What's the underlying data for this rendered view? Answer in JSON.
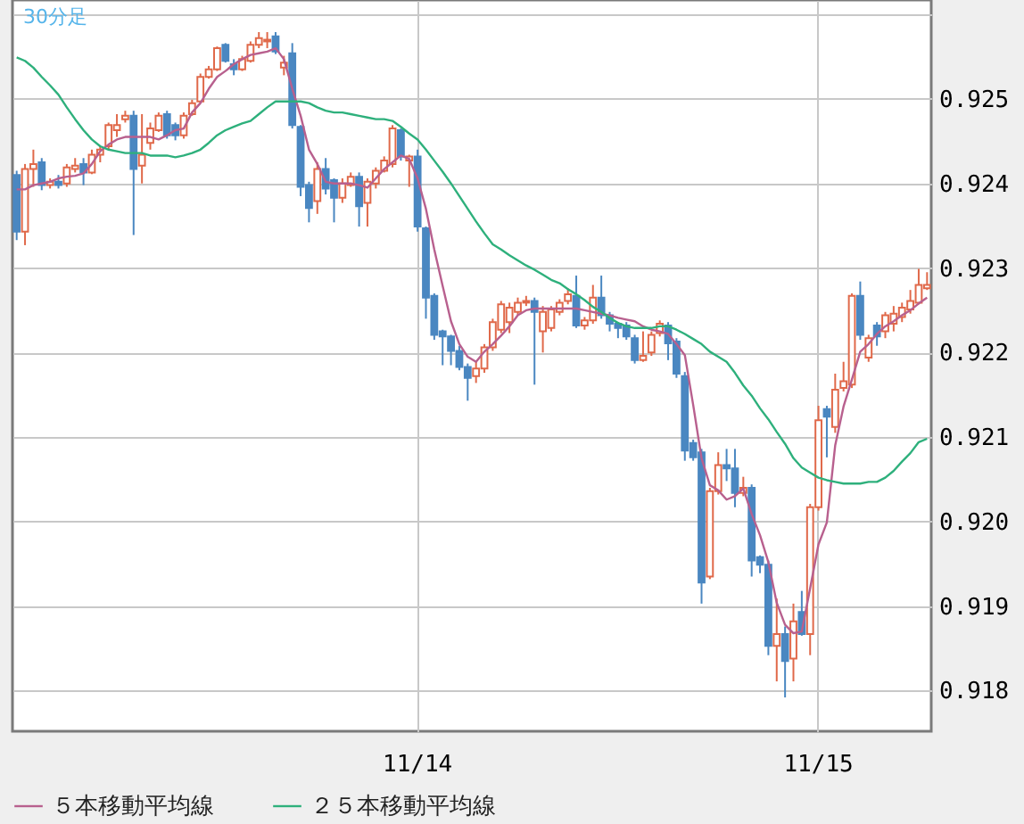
{
  "chart_data": {
    "type": "candlestick",
    "categories": [
      null,
      null,
      null,
      null,
      null,
      null,
      null,
      null,
      null,
      null,
      null,
      null,
      null,
      null,
      null,
      null,
      null,
      null,
      null,
      null,
      null,
      null,
      null,
      null,
      null,
      null,
      null,
      null,
      null,
      null,
      null,
      null,
      null,
      null,
      null,
      null,
      null,
      null,
      null,
      null,
      null,
      null,
      null,
      null,
      null,
      null,
      null,
      null,
      "11/14",
      null,
      null,
      null,
      null,
      null,
      null,
      null,
      null,
      null,
      null,
      null,
      null,
      null,
      null,
      null,
      null,
      null,
      null,
      null,
      null,
      null,
      null,
      null,
      null,
      null,
      null,
      null,
      null,
      null,
      null,
      null,
      null,
      null,
      null,
      null,
      null,
      null,
      null,
      null,
      null,
      null,
      null,
      null,
      null,
      null,
      null,
      null,
      "11/15",
      null,
      null,
      null,
      null,
      null,
      null,
      null,
      null,
      null,
      null,
      null,
      null,
      null
    ],
    "ohlc": [
      [
        0.9241,
        0.92415,
        0.92333,
        0.92343
      ],
      [
        0.92343,
        0.92423,
        0.92327,
        0.92417
      ],
      [
        0.92417,
        0.9244,
        0.92396,
        0.92423
      ],
      [
        0.92425,
        0.9243,
        0.92392,
        0.92398
      ],
      [
        0.92398,
        0.92406,
        0.92394,
        0.92402
      ],
      [
        0.92402,
        0.9241,
        0.92394,
        0.92398
      ],
      [
        0.924,
        0.92423,
        0.92396,
        0.92419
      ],
      [
        0.92417,
        0.9243,
        0.92413,
        0.92421
      ],
      [
        0.92423,
        0.9243,
        0.92398,
        0.92413
      ],
      [
        0.92413,
        0.9244,
        0.92411,
        0.92434
      ],
      [
        0.92434,
        0.92444,
        0.92425,
        0.9244
      ],
      [
        0.92444,
        0.92472,
        0.9244,
        0.92469
      ],
      [
        0.92463,
        0.92482,
        0.92455,
        0.92469
      ],
      [
        0.92476,
        0.92486,
        0.92472,
        0.9248
      ],
      [
        0.9248,
        0.92486,
        0.92339,
        0.92417
      ],
      [
        0.92421,
        0.92482,
        0.924,
        0.92434
      ],
      [
        0.92448,
        0.92472,
        0.9244,
        0.92465
      ],
      [
        0.92463,
        0.92484,
        0.92461,
        0.9248
      ],
      [
        0.92482,
        0.92486,
        0.92453,
        0.92457
      ],
      [
        0.92469,
        0.92472,
        0.92451,
        0.92457
      ],
      [
        0.92457,
        0.92484,
        0.92453,
        0.9248
      ],
      [
        0.92482,
        0.92499,
        0.9248,
        0.92495
      ],
      [
        0.92497,
        0.9253,
        0.92495,
        0.92526
      ],
      [
        0.92526,
        0.92539,
        0.92524,
        0.92535
      ],
      [
        0.92535,
        0.92562,
        0.92533,
        0.9256
      ],
      [
        0.92564,
        0.92566,
        0.92543,
        0.92545
      ],
      [
        0.92541,
        0.92547,
        0.92528,
        0.92535
      ],
      [
        0.92535,
        0.92551,
        0.92533,
        0.92547
      ],
      [
        0.92545,
        0.92568,
        0.92543,
        0.92564
      ],
      [
        0.92564,
        0.92579,
        0.9256,
        0.92572
      ],
      [
        0.92568,
        0.92579,
        0.9256,
        0.9257
      ],
      [
        0.92574,
        0.92579,
        0.92553,
        0.92556
      ],
      [
        0.92537,
        0.92551,
        0.92528,
        0.92543
      ],
      [
        0.92554,
        0.92566,
        0.92465,
        0.92469
      ],
      [
        0.92467,
        0.92469,
        0.92385,
        0.92396
      ],
      [
        0.92398,
        0.92402,
        0.92354,
        0.92371
      ],
      [
        0.92379,
        0.92425,
        0.92364,
        0.92417
      ],
      [
        0.92417,
        0.9243,
        0.92387,
        0.92394
      ],
      [
        0.92404,
        0.92406,
        0.92354,
        0.92383
      ],
      [
        0.92383,
        0.92406,
        0.92377,
        0.924
      ],
      [
        0.92398,
        0.92413,
        0.92396,
        0.92408
      ],
      [
        0.92408,
        0.92413,
        0.92349,
        0.92373
      ],
      [
        0.92377,
        0.92406,
        0.92349,
        0.92402
      ],
      [
        0.924,
        0.92419,
        0.92394,
        0.92415
      ],
      [
        0.92415,
        0.92432,
        0.92413,
        0.92427
      ],
      [
        0.92423,
        0.92469,
        0.92419,
        0.92465
      ],
      [
        0.92463,
        0.92465,
        0.92427,
        0.92432
      ],
      [
        0.92427,
        0.92434,
        0.92396,
        0.92432
      ],
      [
        0.92432,
        0.9244,
        0.92343,
        0.92349
      ],
      [
        0.92347,
        0.92349,
        0.9224,
        0.92265
      ],
      [
        0.92267,
        0.9227,
        0.92215,
        0.92221
      ],
      [
        0.92225,
        0.92227,
        0.92185,
        0.92219
      ],
      [
        0.92219,
        0.92221,
        0.92185,
        0.92202
      ],
      [
        0.92202,
        0.92208,
        0.92179,
        0.92183
      ],
      [
        0.92183,
        0.92187,
        0.92143,
        0.9217
      ],
      [
        0.92172,
        0.92189,
        0.92164,
        0.92181
      ],
      [
        0.92181,
        0.9221,
        0.92176,
        0.92206
      ],
      [
        0.92206,
        0.9224,
        0.92202,
        0.92236
      ],
      [
        0.92227,
        0.92261,
        0.92223,
        0.92257
      ],
      [
        0.92236,
        0.92259,
        0.92223,
        0.92253
      ],
      [
        0.92248,
        0.92265,
        0.92244,
        0.92259
      ],
      [
        0.92259,
        0.92267,
        0.92255,
        0.92261
      ],
      [
        0.92261,
        0.92265,
        0.92162,
        0.92248
      ],
      [
        0.92225,
        0.92255,
        0.922,
        0.92248
      ],
      [
        0.92229,
        0.92255,
        0.92225,
        0.92251
      ],
      [
        0.92248,
        0.92263,
        0.92244,
        0.92259
      ],
      [
        0.92261,
        0.92276,
        0.92257,
        0.92269
      ],
      [
        0.92267,
        0.92291,
        0.92229,
        0.92232
      ],
      [
        0.92232,
        0.92242,
        0.92227,
        0.92238
      ],
      [
        0.92238,
        0.9228,
        0.92234,
        0.92265
      ],
      [
        0.92265,
        0.92291,
        0.9224,
        0.92244
      ],
      [
        0.92244,
        0.92248,
        0.92225,
        0.92234
      ],
      [
        0.92234,
        0.92236,
        0.92217,
        0.92229
      ],
      [
        0.92232,
        0.92236,
        0.92215,
        0.92219
      ],
      [
        0.92217,
        0.92221,
        0.92187,
        0.92191
      ],
      [
        0.92191,
        0.92225,
        0.92189,
        0.92196
      ],
      [
        0.922,
        0.92225,
        0.92196,
        0.92221
      ],
      [
        0.92223,
        0.92238,
        0.92219,
        0.92234
      ],
      [
        0.92232,
        0.92236,
        0.92191,
        0.92211
      ],
      [
        0.92213,
        0.92217,
        0.9217,
        0.92175
      ],
      [
        0.92172,
        0.92177,
        0.92072,
        0.92084
      ],
      [
        0.92093,
        0.92097,
        0.92072,
        0.92076
      ],
      [
        0.92082,
        0.92086,
        0.91903,
        0.91928
      ],
      [
        0.91935,
        0.9204,
        0.91932,
        0.92036
      ],
      [
        0.92036,
        0.92082,
        0.92032,
        0.92067
      ],
      [
        0.92067,
        0.92086,
        0.92048,
        0.92063
      ],
      [
        0.92063,
        0.92086,
        0.92017,
        0.92034
      ],
      [
        0.92034,
        0.92053,
        0.9203,
        0.9204
      ],
      [
        0.9204,
        0.92044,
        0.91935,
        0.91954
      ],
      [
        0.91958,
        0.9196,
        0.91939,
        0.91949
      ],
      [
        0.91949,
        0.91954,
        0.91842,
        0.91853
      ],
      [
        0.91853,
        0.91909,
        0.91811,
        0.91867
      ],
      [
        0.91867,
        0.91876,
        0.91792,
        0.91835
      ],
      [
        0.91838,
        0.91903,
        0.91811,
        0.91882
      ],
      [
        0.91893,
        0.91918,
        0.91865,
        0.91867
      ],
      [
        0.91867,
        0.92021,
        0.91842,
        0.92017
      ],
      [
        0.92017,
        0.92137,
        0.92013,
        0.9212
      ],
      [
        0.92133,
        0.92137,
        0.92076,
        0.92124
      ],
      [
        0.92112,
        0.92175,
        0.92105,
        0.92156
      ],
      [
        0.92158,
        0.92189,
        0.92154,
        0.92166
      ],
      [
        0.92162,
        0.9227,
        0.92158,
        0.92267
      ],
      [
        0.92267,
        0.92284,
        0.92215,
        0.92221
      ],
      [
        0.92194,
        0.92221,
        0.92189,
        0.92217
      ],
      [
        0.92232,
        0.92236,
        0.92208,
        0.92219
      ],
      [
        0.92225,
        0.92248,
        0.92217,
        0.92244
      ],
      [
        0.92234,
        0.92255,
        0.92225,
        0.92246
      ],
      [
        0.92242,
        0.92259,
        0.92236,
        0.92253
      ],
      [
        0.92251,
        0.92274,
        0.92246,
        0.92261
      ],
      [
        0.92259,
        0.92299,
        0.92257,
        0.9228
      ],
      [
        0.92276,
        0.92295,
        0.92274,
        0.9228
      ]
    ],
    "colors": [
      "#4a87c1",
      "#e0694a",
      "#e0694a",
      "#4a87c1",
      "#e0694a",
      "#4a87c1",
      "#e0694a",
      "#e0694a",
      "#4a87c1",
      "#e0694a",
      "#e0694a",
      "#e0694a",
      "#e0694a",
      "#e0694a",
      "#4a87c1",
      "#e0694a",
      "#e0694a",
      "#e0694a",
      "#4a87c1",
      "#4a87c1",
      "#e0694a",
      "#e0694a",
      "#e0694a",
      "#e0694a",
      "#e0694a",
      "#4a87c1",
      "#4a87c1",
      "#e0694a",
      "#e0694a",
      "#e0694a",
      "#e0694a",
      "#4a87c1",
      "#e0694a",
      "#4a87c1",
      "#4a87c1",
      "#4a87c1",
      "#e0694a",
      "#4a87c1",
      "#4a87c1",
      "#e0694a",
      "#e0694a",
      "#4a87c1",
      "#e0694a",
      "#e0694a",
      "#e0694a",
      "#e0694a",
      "#4a87c1",
      "#e0694a",
      "#4a87c1",
      "#4a87c1",
      "#4a87c1",
      "#4a87c1",
      "#4a87c1",
      "#4a87c1",
      "#4a87c1",
      "#e0694a",
      "#e0694a",
      "#e0694a",
      "#e0694a",
      "#e0694a",
      "#e0694a",
      "#e0694a",
      "#4a87c1",
      "#e0694a",
      "#e0694a",
      "#e0694a",
      "#e0694a",
      "#4a87c1",
      "#e0694a",
      "#e0694a",
      "#4a87c1",
      "#4a87c1",
      "#4a87c1",
      "#4a87c1",
      "#4a87c1",
      "#e0694a",
      "#e0694a",
      "#e0694a",
      "#4a87c1",
      "#4a87c1",
      "#4a87c1",
      "#4a87c1",
      "#4a87c1",
      "#e0694a",
      "#e0694a",
      "#4a87c1",
      "#4a87c1",
      "#e0694a",
      "#4a87c1",
      "#4a87c1",
      "#4a87c1",
      "#e0694a",
      "#4a87c1",
      "#e0694a",
      "#4a87c1",
      "#e0694a",
      "#e0694a",
      "#4a87c1",
      "#e0694a",
      "#e0694a",
      "#e0694a",
      "#4a87c1",
      "#e0694a",
      "#4a87c1",
      "#e0694a",
      "#e0694a",
      "#e0694a",
      "#e0694a",
      "#e0694a",
      "#e0694a"
    ],
    "series": [
      {
        "name": "５本移動平均線",
        "type": "line",
        "color": "#b8608e",
        "values": [
          0.92393,
          0.92393,
          0.92398,
          0.924,
          0.92402,
          0.92406,
          0.92408,
          0.92409,
          0.92412,
          0.92423,
          0.92438,
          0.92446,
          0.92452,
          0.92455,
          0.92455,
          0.92455,
          0.92455,
          0.92452,
          0.92457,
          0.92463,
          0.92465,
          0.92484,
          0.92495,
          0.92512,
          0.92526,
          0.92533,
          0.92541,
          0.92547,
          0.92552,
          0.92554,
          0.92556,
          0.9256,
          0.92547,
          0.92512,
          0.9248,
          0.9244,
          0.92423,
          0.92402,
          0.924,
          0.924,
          0.924,
          0.92398,
          0.92395,
          0.92406,
          0.92417,
          0.92425,
          0.92433,
          0.92429,
          0.92406,
          0.9237,
          0.92322,
          0.92279,
          0.92237,
          0.9221,
          0.92195,
          0.92189,
          0.92201,
          0.9221,
          0.9222,
          0.92231,
          0.92244,
          0.9225,
          0.92252,
          0.92252,
          0.92252,
          0.92252,
          0.92252,
          0.92252,
          0.9225,
          0.92248,
          0.92246,
          0.92244,
          0.92241,
          0.92239,
          0.92237,
          0.92231,
          0.92227,
          0.92225,
          0.92222,
          0.9221,
          0.92197,
          0.92138,
          0.92075,
          0.92043,
          0.92037,
          0.92026,
          0.9203,
          0.92039,
          0.92009,
          0.91984,
          0.91952,
          0.91904,
          0.91878,
          0.91868,
          0.9187,
          0.91921,
          0.91973,
          0.91999,
          0.9209,
          0.92136,
          0.92168,
          0.92201,
          0.9221,
          0.92222,
          0.92231,
          0.92237,
          0.92244,
          0.9225,
          0.92258,
          0.92265
        ]
      },
      {
        "name": "２５本移動平均線",
        "type": "line",
        "color": "#2eb07c",
        "values": [
          0.92549,
          0.92545,
          0.92537,
          0.92526,
          0.92516,
          0.92505,
          0.9249,
          0.92476,
          0.92463,
          0.92452,
          0.92444,
          0.9244,
          0.92438,
          0.92436,
          0.92436,
          0.92436,
          0.92433,
          0.92433,
          0.92433,
          0.92431,
          0.92433,
          0.92436,
          0.9244,
          0.92448,
          0.92457,
          0.92463,
          0.92467,
          0.92471,
          0.92474,
          0.92482,
          0.9249,
          0.92497,
          0.92497,
          0.92497,
          0.92497,
          0.92495,
          0.9249,
          0.92486,
          0.92484,
          0.92484,
          0.92482,
          0.9248,
          0.92478,
          0.92476,
          0.92476,
          0.92474,
          0.92467,
          0.92459,
          0.92452,
          0.9244,
          0.92427,
          0.92414,
          0.924,
          0.92385,
          0.9237,
          0.92355,
          0.92341,
          0.92328,
          0.92322,
          0.92315,
          0.92309,
          0.92303,
          0.92298,
          0.92292,
          0.92286,
          0.92282,
          0.92275,
          0.92269,
          0.92262,
          0.92254,
          0.92248,
          0.92241,
          0.92235,
          0.92231,
          0.92229,
          0.92229,
          0.92229,
          0.92231,
          0.92231,
          0.92227,
          0.92222,
          0.92216,
          0.9221,
          0.92201,
          0.92195,
          0.92189,
          0.92176,
          0.92161,
          0.92149,
          0.92134,
          0.92121,
          0.92106,
          0.92092,
          0.92075,
          0.92064,
          0.92058,
          0.92052,
          0.92049,
          0.92047,
          0.92045,
          0.92045,
          0.92045,
          0.92047,
          0.92047,
          0.92052,
          0.9206,
          0.92071,
          0.92081,
          0.92094,
          0.92098
        ]
      }
    ],
    "ylim": [
      0.91752,
      0.92617
    ],
    "yticks": [
      0.918,
      0.919,
      {
        "value": 0.92,
        "label": "0.920"
      },
      0.921,
      0.922,
      0.923,
      0.924,
      0.925,
      {
        "value": 0.926,
        "label": null
      }
    ],
    "grid": true,
    "legend": "bottom",
    "annotations": [
      "30分足"
    ]
  }
}
